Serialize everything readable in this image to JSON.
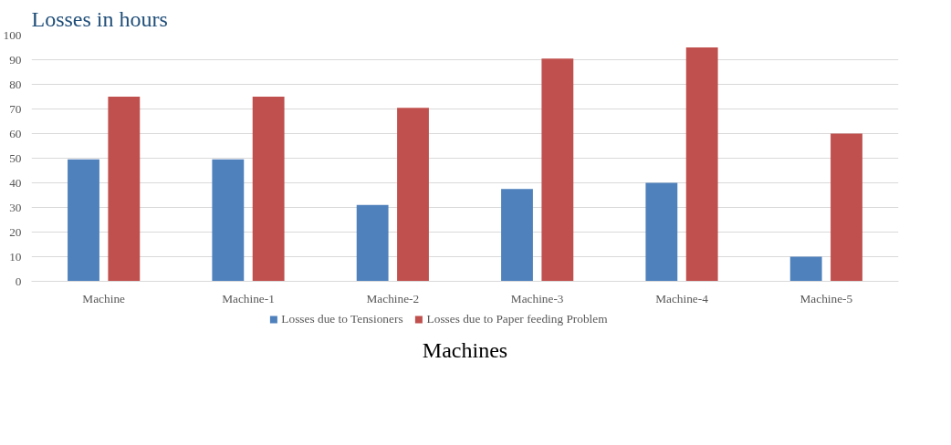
{
  "chart_data": {
    "type": "bar",
    "ylabel": "Losses in hours",
    "xlabel": "Machines",
    "categories": [
      "Machine",
      "Machine-1",
      "Machine-2",
      "Machine-3",
      "Machine-4",
      "Machine-5"
    ],
    "series": [
      {
        "name": "Losses due to Tensioners",
        "color": "#4f81bd",
        "values": [
          49.5,
          49.5,
          31,
          37.5,
          40,
          10
        ]
      },
      {
        "name": "Losses due to Paper feeding Problem",
        "color": "#c0504d",
        "values": [
          75,
          75,
          70.5,
          90.5,
          95,
          60
        ]
      }
    ],
    "ylim": [
      0,
      100
    ],
    "yticks": [
      0,
      10,
      20,
      30,
      40,
      50,
      60,
      70,
      80,
      90,
      100
    ],
    "grid": "y",
    "legend": "bottom"
  }
}
